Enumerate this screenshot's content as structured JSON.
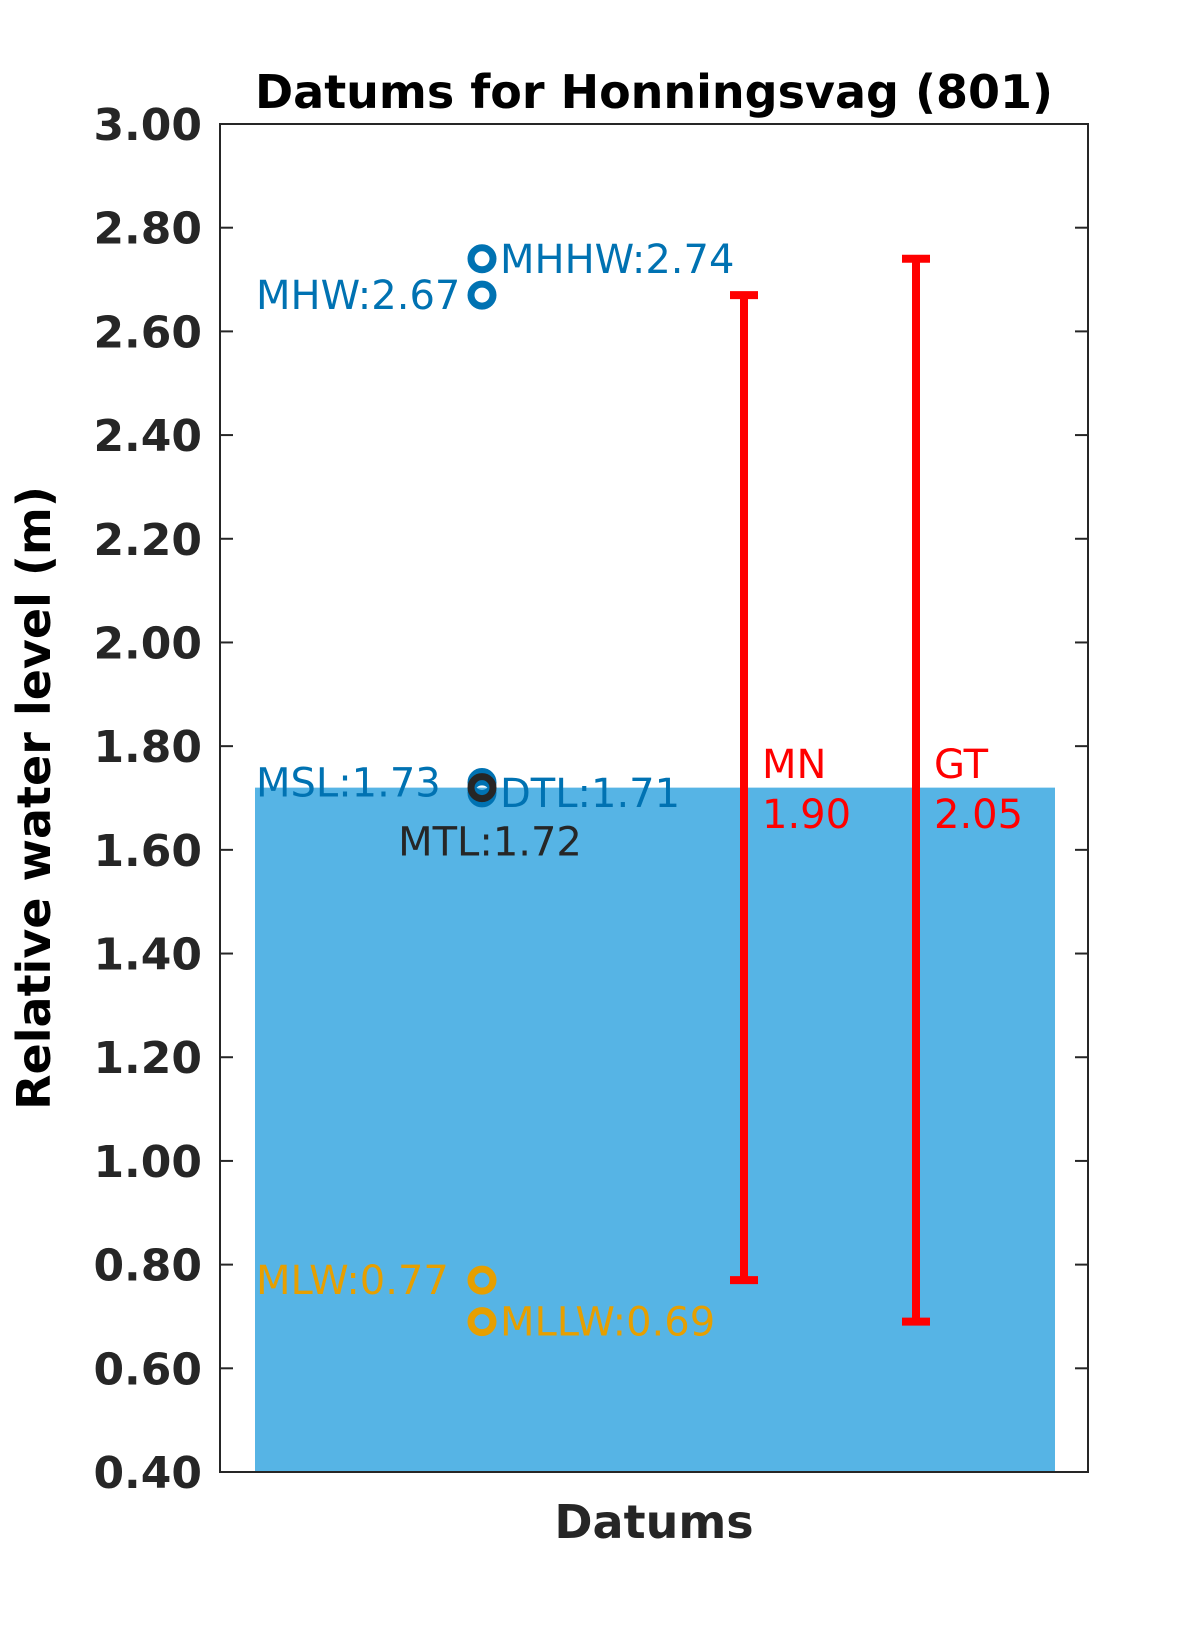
{
  "chart_data": {
    "type": "bar",
    "title": "Datums for Honningsvag (801)",
    "xlabel": "Datums",
    "ylabel": "Relative water level (m)",
    "ylim": [
      0.4,
      3.0
    ],
    "yticks": [
      "0.40",
      "0.60",
      "0.80",
      "1.00",
      "1.20",
      "1.40",
      "1.60",
      "1.80",
      "2.00",
      "2.20",
      "2.40",
      "2.60",
      "2.80",
      "3.00"
    ],
    "grid": false,
    "bar": {
      "value": 1.72,
      "color": "#56b4e5"
    },
    "datums": [
      {
        "name": "MHHW",
        "value": 2.74,
        "label": "MHHW:2.74",
        "color": "#0072b2",
        "side": "right"
      },
      {
        "name": "MHW",
        "value": 2.67,
        "label": "MHW:2.67",
        "color": "#0072b2",
        "side": "left"
      },
      {
        "name": "MSL",
        "value": 1.73,
        "label": "MSL:1.73",
        "color": "#0072b2",
        "side": "left"
      },
      {
        "name": "DTL",
        "value": 1.71,
        "label": "DTL:1.71",
        "color": "#0072b2",
        "side": "right"
      },
      {
        "name": "MTL",
        "value": 1.72,
        "label": "MTL:1.72",
        "color": "#262626",
        "side": "below"
      },
      {
        "name": "MLW",
        "value": 0.77,
        "label": "MLW:0.77",
        "color": "#e69f00",
        "side": "left"
      },
      {
        "name": "MLLW",
        "value": 0.69,
        "label": "MLLW:0.69",
        "color": "#e69f00",
        "side": "right"
      }
    ],
    "ranges": [
      {
        "name": "MN",
        "low": 0.77,
        "high": 2.67,
        "value_label": "1.90",
        "color": "#ff0000"
      },
      {
        "name": "GT",
        "low": 0.69,
        "high": 2.74,
        "value_label": "2.05",
        "color": "#ff0000"
      }
    ]
  }
}
